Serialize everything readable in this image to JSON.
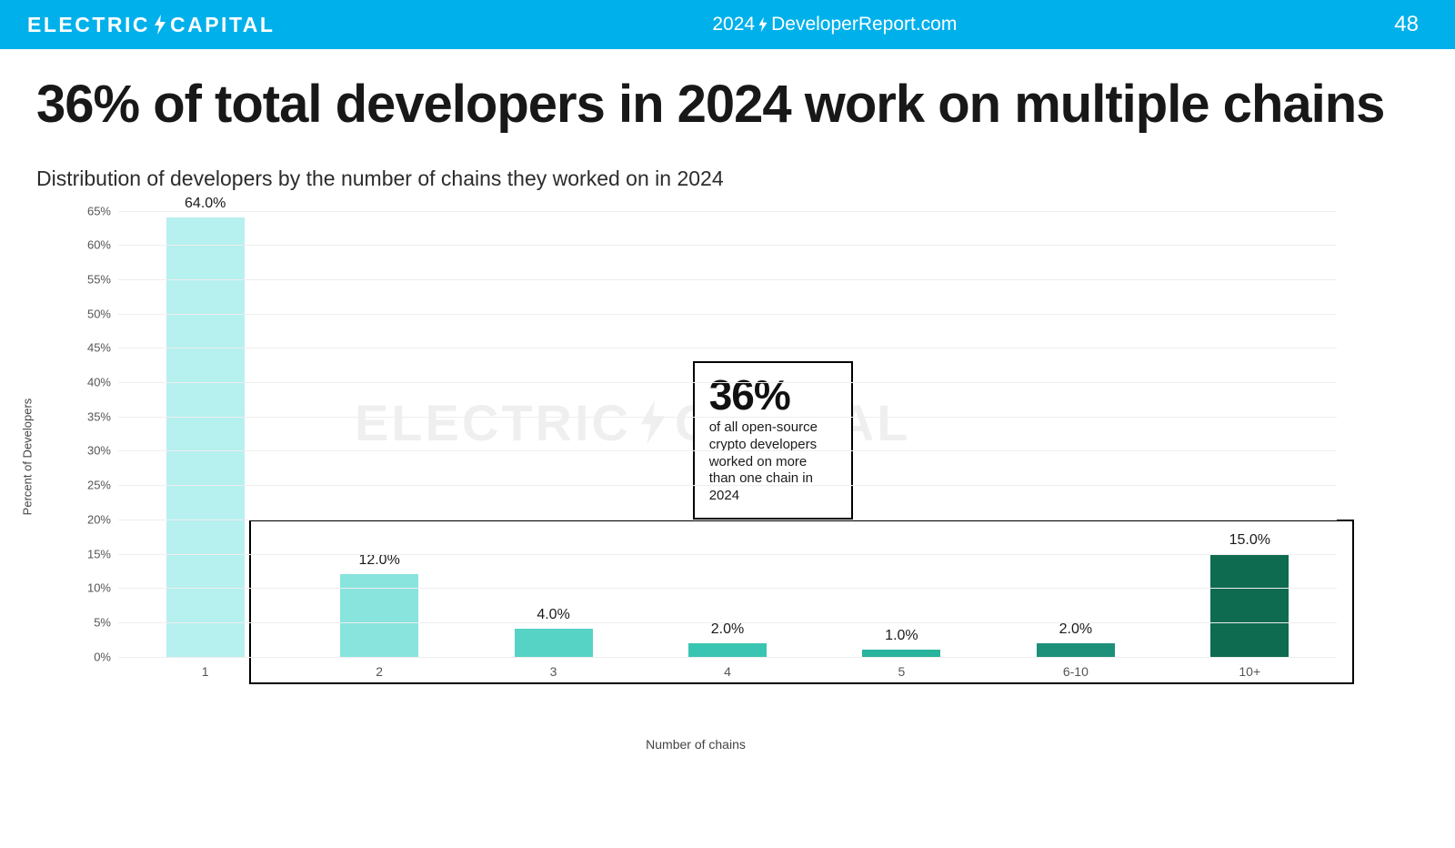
{
  "header": {
    "brand_left": "ELECTRIC",
    "brand_right": "CAPITAL",
    "site_left": "2024",
    "site_right": "DeveloperReport.com",
    "page_number": "48",
    "bg_color": "#00b0eb",
    "text_color": "#ffffff"
  },
  "title": "36% of total developers in 2024 work on multiple chains",
  "subtitle": "Distribution of developers by the number of chains they worked on in 2024",
  "chart": {
    "type": "bar",
    "ylabel": "Percent of Developers",
    "xlabel": "Number of chains",
    "ylim_max": 65,
    "ytick_step": 5,
    "grid_color": "#eeeeee",
    "background_color": "#ffffff",
    "bar_width_ratio": 0.45,
    "tick_fontsize": 13,
    "label_fontsize": 16,
    "categories": [
      "1",
      "2",
      "3",
      "4",
      "5",
      "6-10",
      "10+"
    ],
    "values": [
      64.0,
      12.0,
      4.0,
      2.0,
      1.0,
      2.0,
      15.0
    ],
    "value_labels": [
      "64.0%",
      "12.0%",
      "4.0%",
      "2.0%",
      "1.0%",
      "2.0%",
      "15.0%"
    ],
    "bar_colors": [
      "#b6f0ef",
      "#88e4dd",
      "#57d3c6",
      "#39c5b1",
      "#29b49d",
      "#1e8f79",
      "#0e6b4f"
    ]
  },
  "highlight": {
    "from_index": 1,
    "to_index": 6,
    "from_value": 20,
    "border_color": "#000000"
  },
  "callout": {
    "big": "36%",
    "text": "of all open-source crypto developers worked on more than one chain in 2024",
    "border_color": "#000000",
    "bg_color": "#ffffff"
  },
  "watermark": {
    "left": "ELECTRIC",
    "right": "CAPITAL",
    "opacity": 0.06
  }
}
